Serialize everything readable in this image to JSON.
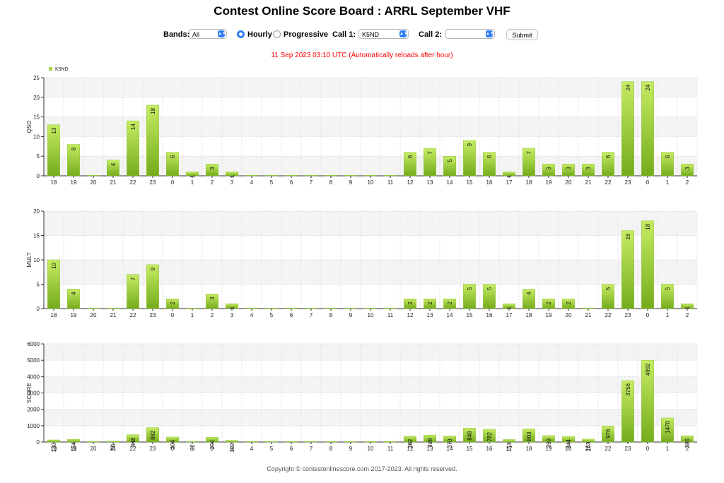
{
  "title": "Contest Online Score Board : ARRL September VHF",
  "controls": {
    "bands_label": "Bands:",
    "bands_value": "All",
    "hourly_label": "Hourly",
    "progressive_label": "Progressive",
    "call1_label": "Call 1:",
    "call1_value": "K5ND",
    "call2_label": "Call 2:",
    "call2_value": "",
    "submit_label": "Submit"
  },
  "status_text": "11 Sep 2023 03:10 UTC   (Automatically reloads after hour)",
  "footer_text": "Copyright © contestonlinescore.com 2017-2023. All rights reserved.",
  "colors": {
    "bar_top": "#c6ec63",
    "bar_bottom": "#74ab1c",
    "status": "#ff0000",
    "band": "#f4f4f4"
  },
  "chart_data": [
    {
      "type": "bar",
      "legend": [
        "K5ND"
      ],
      "legend_position": "top-left",
      "ylabel": "QSO",
      "ylim": [
        0,
        25
      ],
      "yticks": [
        0,
        5,
        10,
        15,
        20,
        25
      ],
      "grid": true,
      "categories": [
        "18",
        "19",
        "20",
        "21",
        "22",
        "23",
        "0",
        "1",
        "2",
        "3",
        "4",
        "5",
        "6",
        "7",
        "8",
        "9",
        "10",
        "11",
        "12",
        "13",
        "14",
        "15",
        "16",
        "17",
        "18",
        "19",
        "20",
        "21",
        "22",
        "23",
        "0",
        "1",
        "2"
      ],
      "values": [
        13,
        8,
        0,
        4,
        14,
        18,
        6,
        1,
        3,
        1,
        0,
        0,
        0,
        0,
        0,
        0,
        0,
        0,
        6,
        7,
        5,
        9,
        6,
        1,
        7,
        3,
        3,
        3,
        6,
        24,
        24,
        6,
        3
      ]
    },
    {
      "type": "bar",
      "ylabel": "MULT",
      "ylim": [
        0,
        20
      ],
      "yticks": [
        0,
        5,
        10,
        15,
        20
      ],
      "grid": true,
      "categories": [
        "18",
        "19",
        "20",
        "21",
        "22",
        "23",
        "0",
        "1",
        "2",
        "3",
        "4",
        "5",
        "6",
        "7",
        "8",
        "9",
        "10",
        "11",
        "12",
        "13",
        "14",
        "15",
        "16",
        "17",
        "18",
        "19",
        "20",
        "21",
        "22",
        "23",
        "0",
        "1",
        "2"
      ],
      "values": [
        10,
        4,
        0,
        0,
        7,
        9,
        2,
        0,
        3,
        1,
        0,
        0,
        0,
        0,
        0,
        0,
        0,
        0,
        2,
        2,
        2,
        5,
        5,
        1,
        4,
        2,
        2,
        0,
        5,
        16,
        18,
        5,
        1
      ]
    },
    {
      "type": "bar",
      "ylabel": "SCORE",
      "ylim": [
        0,
        6000
      ],
      "yticks": [
        0,
        1000,
        2000,
        3000,
        4000,
        5000,
        6000
      ],
      "grid": true,
      "categories": [
        "18",
        "19",
        "20",
        "21",
        "22",
        "23",
        "0",
        "1",
        "2",
        "3",
        "4",
        "5",
        "6",
        "7",
        "8",
        "9",
        "10",
        "11",
        "12",
        "13",
        "14",
        "15",
        "16",
        "17",
        "18",
        "19",
        "20",
        "21",
        "22",
        "23",
        "0",
        "1",
        "2"
      ],
      "values": [
        130,
        164,
        0,
        56,
        448,
        882,
        304,
        32,
        294,
        102,
        0,
        0,
        0,
        0,
        0,
        0,
        0,
        0,
        362,
        426,
        370,
        848,
        782,
        153,
        803,
        393,
        344,
        183,
        976,
        3756,
        4992,
        1470,
        386
      ]
    }
  ]
}
